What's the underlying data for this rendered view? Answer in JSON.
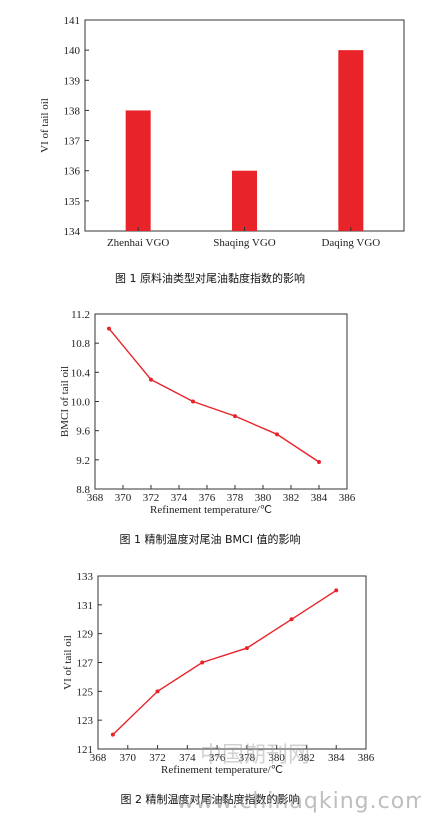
{
  "chart_data": [
    {
      "type": "bar",
      "caption": "图 1 原料油类型对尾油黏度指数的影响",
      "ylabel": "VI of tail oil",
      "xlabel": "",
      "categories": [
        "Zhenhai VGO",
        "Shaqing VGO",
        "Daqing VGO"
      ],
      "values": [
        138,
        136,
        140
      ],
      "ylim": [
        134,
        141
      ],
      "yticks": [
        134,
        135,
        136,
        137,
        138,
        139,
        140,
        141
      ],
      "color": "#e8232a",
      "grid": false
    },
    {
      "type": "line",
      "caption": "图 1  精制温度对尾油  BMCI  值的影响",
      "ylabel": "BMCI of tail oil",
      "xlabel": "Refinement temperature/℃",
      "x": [
        369,
        372,
        375,
        378,
        381,
        384
      ],
      "y": [
        11.0,
        10.3,
        10.0,
        9.8,
        9.55,
        9.17
      ],
      "xlim": [
        368,
        386
      ],
      "ylim": [
        8.8,
        11.2
      ],
      "xticks": [
        368,
        370,
        372,
        374,
        376,
        378,
        380,
        382,
        384,
        386
      ],
      "yticks": [
        8.8,
        9.2,
        9.6,
        10.0,
        10.4,
        10.8,
        11.2
      ],
      "color": "#e8232a",
      "grid": false
    },
    {
      "type": "line",
      "caption": "图 2  精制温度对尾油黏度指数的影响",
      "ylabel": "VI of tail oil",
      "xlabel": "Refinement temperature/℃",
      "x": [
        369,
        372,
        375,
        378,
        381,
        384
      ],
      "y": [
        122,
        125,
        127,
        128,
        130,
        132
      ],
      "xlim": [
        368,
        386
      ],
      "ylim": [
        121,
        133
      ],
      "xticks": [
        368,
        370,
        372,
        374,
        376,
        378,
        380,
        382,
        384,
        386
      ],
      "yticks": [
        121,
        123,
        125,
        127,
        129,
        131,
        133
      ],
      "color": "#e8232a",
      "grid": false
    }
  ],
  "watermark": {
    "text_cn": "中国期刊网",
    "text_en": "www.chinaqking.com"
  }
}
